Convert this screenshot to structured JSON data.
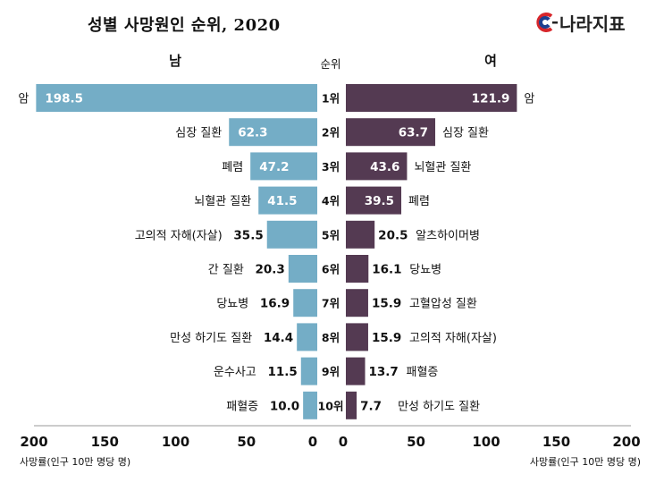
{
  "header": {
    "title": "성별 사망원인 순위, 2020",
    "logo_text": "나라지표"
  },
  "colors": {
    "male": "#74adc6",
    "female": "#543a52",
    "male_highlight_text": "#4a3a6a"
  },
  "chart_data": {
    "type": "bar",
    "title": "성별 사망원인 순위, 2020",
    "orientation": "horizontal-butterfly",
    "rank_header": "순위",
    "unit_label": "사망률(인구 10만 명당 명)",
    "xlim": [
      0,
      200
    ],
    "ticks": [
      "200",
      "150",
      "100",
      "50",
      "0",
      "0",
      "50",
      "100",
      "150",
      "200"
    ],
    "left": {
      "name": "남",
      "items": [
        {
          "rank": "1위",
          "cause": "암",
          "value": 198.5
        },
        {
          "rank": "2위",
          "cause": "심장 질환",
          "value": 62.3
        },
        {
          "rank": "3위",
          "cause": "폐렴",
          "value": 47.2
        },
        {
          "rank": "4위",
          "cause": "뇌혈관 질환",
          "value": 41.5
        },
        {
          "rank": "5위",
          "cause": "고의적 자해(자살)",
          "value": 35.5
        },
        {
          "rank": "6위",
          "cause": "간 질환",
          "value": 20.3
        },
        {
          "rank": "7위",
          "cause": "당뇨병",
          "value": 16.9
        },
        {
          "rank": "8위",
          "cause": "만성 하기도 질환",
          "value": 14.4
        },
        {
          "rank": "9위",
          "cause": "운수사고",
          "value": 11.5
        },
        {
          "rank": "10위",
          "cause": "패혈증",
          "value": 10.0
        }
      ]
    },
    "right": {
      "name": "여",
      "items": [
        {
          "rank": "1위",
          "cause": "암",
          "value": 121.9
        },
        {
          "rank": "2위",
          "cause": "심장 질환",
          "value": 63.7
        },
        {
          "rank": "3위",
          "cause": "뇌혈관 질환",
          "value": 43.6
        },
        {
          "rank": "4위",
          "cause": "폐렴",
          "value": 39.5
        },
        {
          "rank": "5위",
          "cause": "알츠하이머병",
          "value": 20.5
        },
        {
          "rank": "6위",
          "cause": "당뇨병",
          "value": 16.1
        },
        {
          "rank": "7위",
          "cause": "고혈압성 질환",
          "value": 15.9
        },
        {
          "rank": "8위",
          "cause": "고의적 자해(자살)",
          "value": 15.9
        },
        {
          "rank": "9위",
          "cause": "패혈증",
          "value": 13.7
        },
        {
          "rank": "10위",
          "cause": "만성 하기도 질환",
          "value": 7.7
        }
      ]
    }
  }
}
